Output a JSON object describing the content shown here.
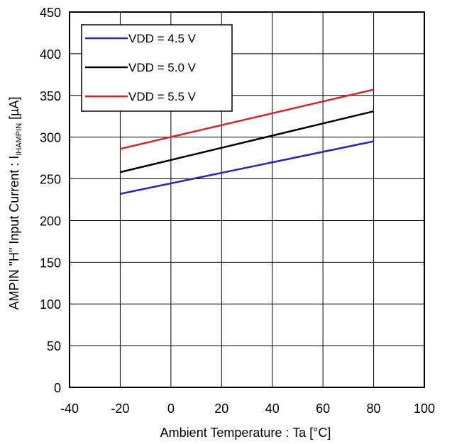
{
  "chart_data": {
    "type": "line",
    "xlabel": "Ambient  Temperature : Ta [°C]",
    "ylabel": {
      "prefix": "AMPIN  \"H\" Input  Current : I",
      "subscript": "IHAMPIN",
      "suffix": " [µA]"
    },
    "xlim": [
      -40,
      100
    ],
    "ylim": [
      0,
      450
    ],
    "xticks": [
      "-40",
      "-20",
      "0",
      "20",
      "40",
      "60",
      "80",
      "100"
    ],
    "yticks": [
      "0",
      "50",
      "100",
      "150",
      "200",
      "250",
      "300",
      "350",
      "400",
      "450"
    ],
    "grid": true,
    "legend_position": "top-left",
    "series": [
      {
        "name": "VDD = 4.5 V",
        "color": "#2323c8",
        "x": [
          -20,
          80
        ],
        "y": [
          232,
          295
        ]
      },
      {
        "name": "VDD = 5.0 V",
        "color": "#000000",
        "x": [
          -20,
          80
        ],
        "y": [
          258,
          331
        ]
      },
      {
        "name": "VDD = 5.5 V",
        "color": "#e02020",
        "x": [
          -20,
          80
        ],
        "y": [
          286,
          357
        ]
      }
    ]
  }
}
